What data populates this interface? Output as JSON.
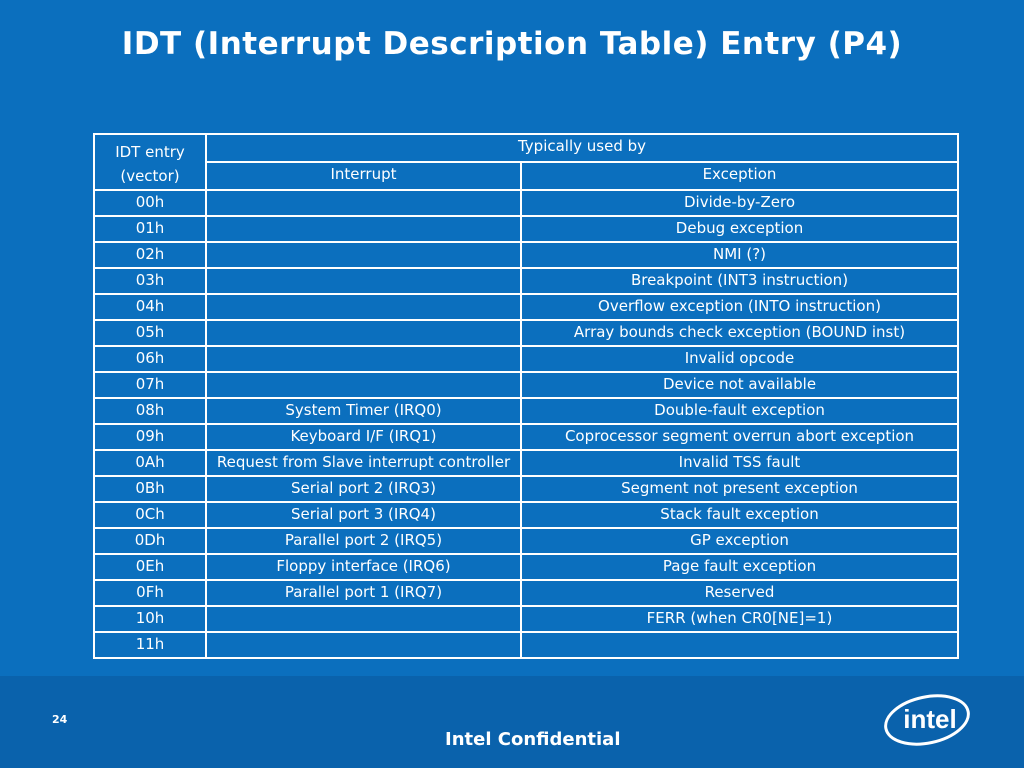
{
  "title": "IDT (Interrupt Description Table) Entry (P4)",
  "table": {
    "header": {
      "col1_line1": "IDT entry",
      "col1_line2": "(vector)",
      "typically_used_by": "Typically used by",
      "interrupt": "Interrupt",
      "exception": "Exception"
    },
    "rows": [
      {
        "vector": "00h",
        "interrupt": "",
        "exception": "Divide-by-Zero"
      },
      {
        "vector": "01h",
        "interrupt": "",
        "exception": "Debug exception"
      },
      {
        "vector": "02h",
        "interrupt": "",
        "exception": "NMI (?)"
      },
      {
        "vector": "03h",
        "interrupt": "",
        "exception": "Breakpoint (INT3 instruction)"
      },
      {
        "vector": "04h",
        "interrupt": "",
        "exception": "Overflow exception (INTO instruction)"
      },
      {
        "vector": "05h",
        "interrupt": "",
        "exception": "Array bounds check exception (BOUND inst)"
      },
      {
        "vector": "06h",
        "interrupt": "",
        "exception": "Invalid opcode"
      },
      {
        "vector": "07h",
        "interrupt": "",
        "exception": "Device not available"
      },
      {
        "vector": "08h",
        "interrupt": "System Timer (IRQ0)",
        "exception": "Double-fault exception"
      },
      {
        "vector": "09h",
        "interrupt": "Keyboard I/F (IRQ1)",
        "exception": "Coprocessor segment overrun abort exception"
      },
      {
        "vector": "0Ah",
        "interrupt": "Request from Slave interrupt controller",
        "exception": "Invalid TSS fault"
      },
      {
        "vector": "0Bh",
        "interrupt": "Serial port 2 (IRQ3)",
        "exception": "Segment not present exception"
      },
      {
        "vector": "0Ch",
        "interrupt": "Serial port 3 (IRQ4)",
        "exception": "Stack fault exception"
      },
      {
        "vector": "0Dh",
        "interrupt": "Parallel port 2 (IRQ5)",
        "exception": "GP exception"
      },
      {
        "vector": "0Eh",
        "interrupt": "Floppy interface (IRQ6)",
        "exception": "Page fault exception"
      },
      {
        "vector": "0Fh",
        "interrupt": "Parallel port 1 (IRQ7)",
        "exception": "Reserved"
      },
      {
        "vector": "10h",
        "interrupt": "",
        "exception": "FERR (when CR0[NE]=1)"
      },
      {
        "vector": "11h",
        "interrupt": "",
        "exception": ""
      }
    ]
  },
  "footer": {
    "page_number": "24",
    "confidential": "Intel Confidential",
    "logo_text": "intel"
  },
  "colors": {
    "background": "#0b6fbe",
    "text": "#ffffff"
  }
}
